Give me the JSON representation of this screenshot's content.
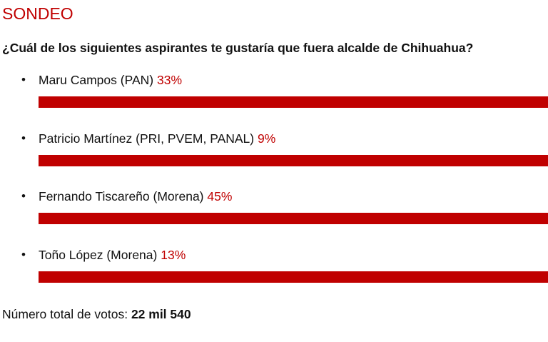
{
  "header": {
    "title": "SONDEO",
    "question": "¿Cuál de los siguientes aspirantes te gustaría que fuera alcalde de Chihuahua?"
  },
  "options": [
    {
      "name": "Maru Campos (PAN)",
      "percent": "33%"
    },
    {
      "name": "Patricio Martínez (PRI, PVEM, PANAL)",
      "percent": "9%"
    },
    {
      "name": "Fernando Tiscareño (Morena)",
      "percent": "45%"
    },
    {
      "name": "Toño López (Morena)",
      "percent": "13%"
    }
  ],
  "footer": {
    "label": "Número total de votos:",
    "total": "22 mil 540"
  }
}
